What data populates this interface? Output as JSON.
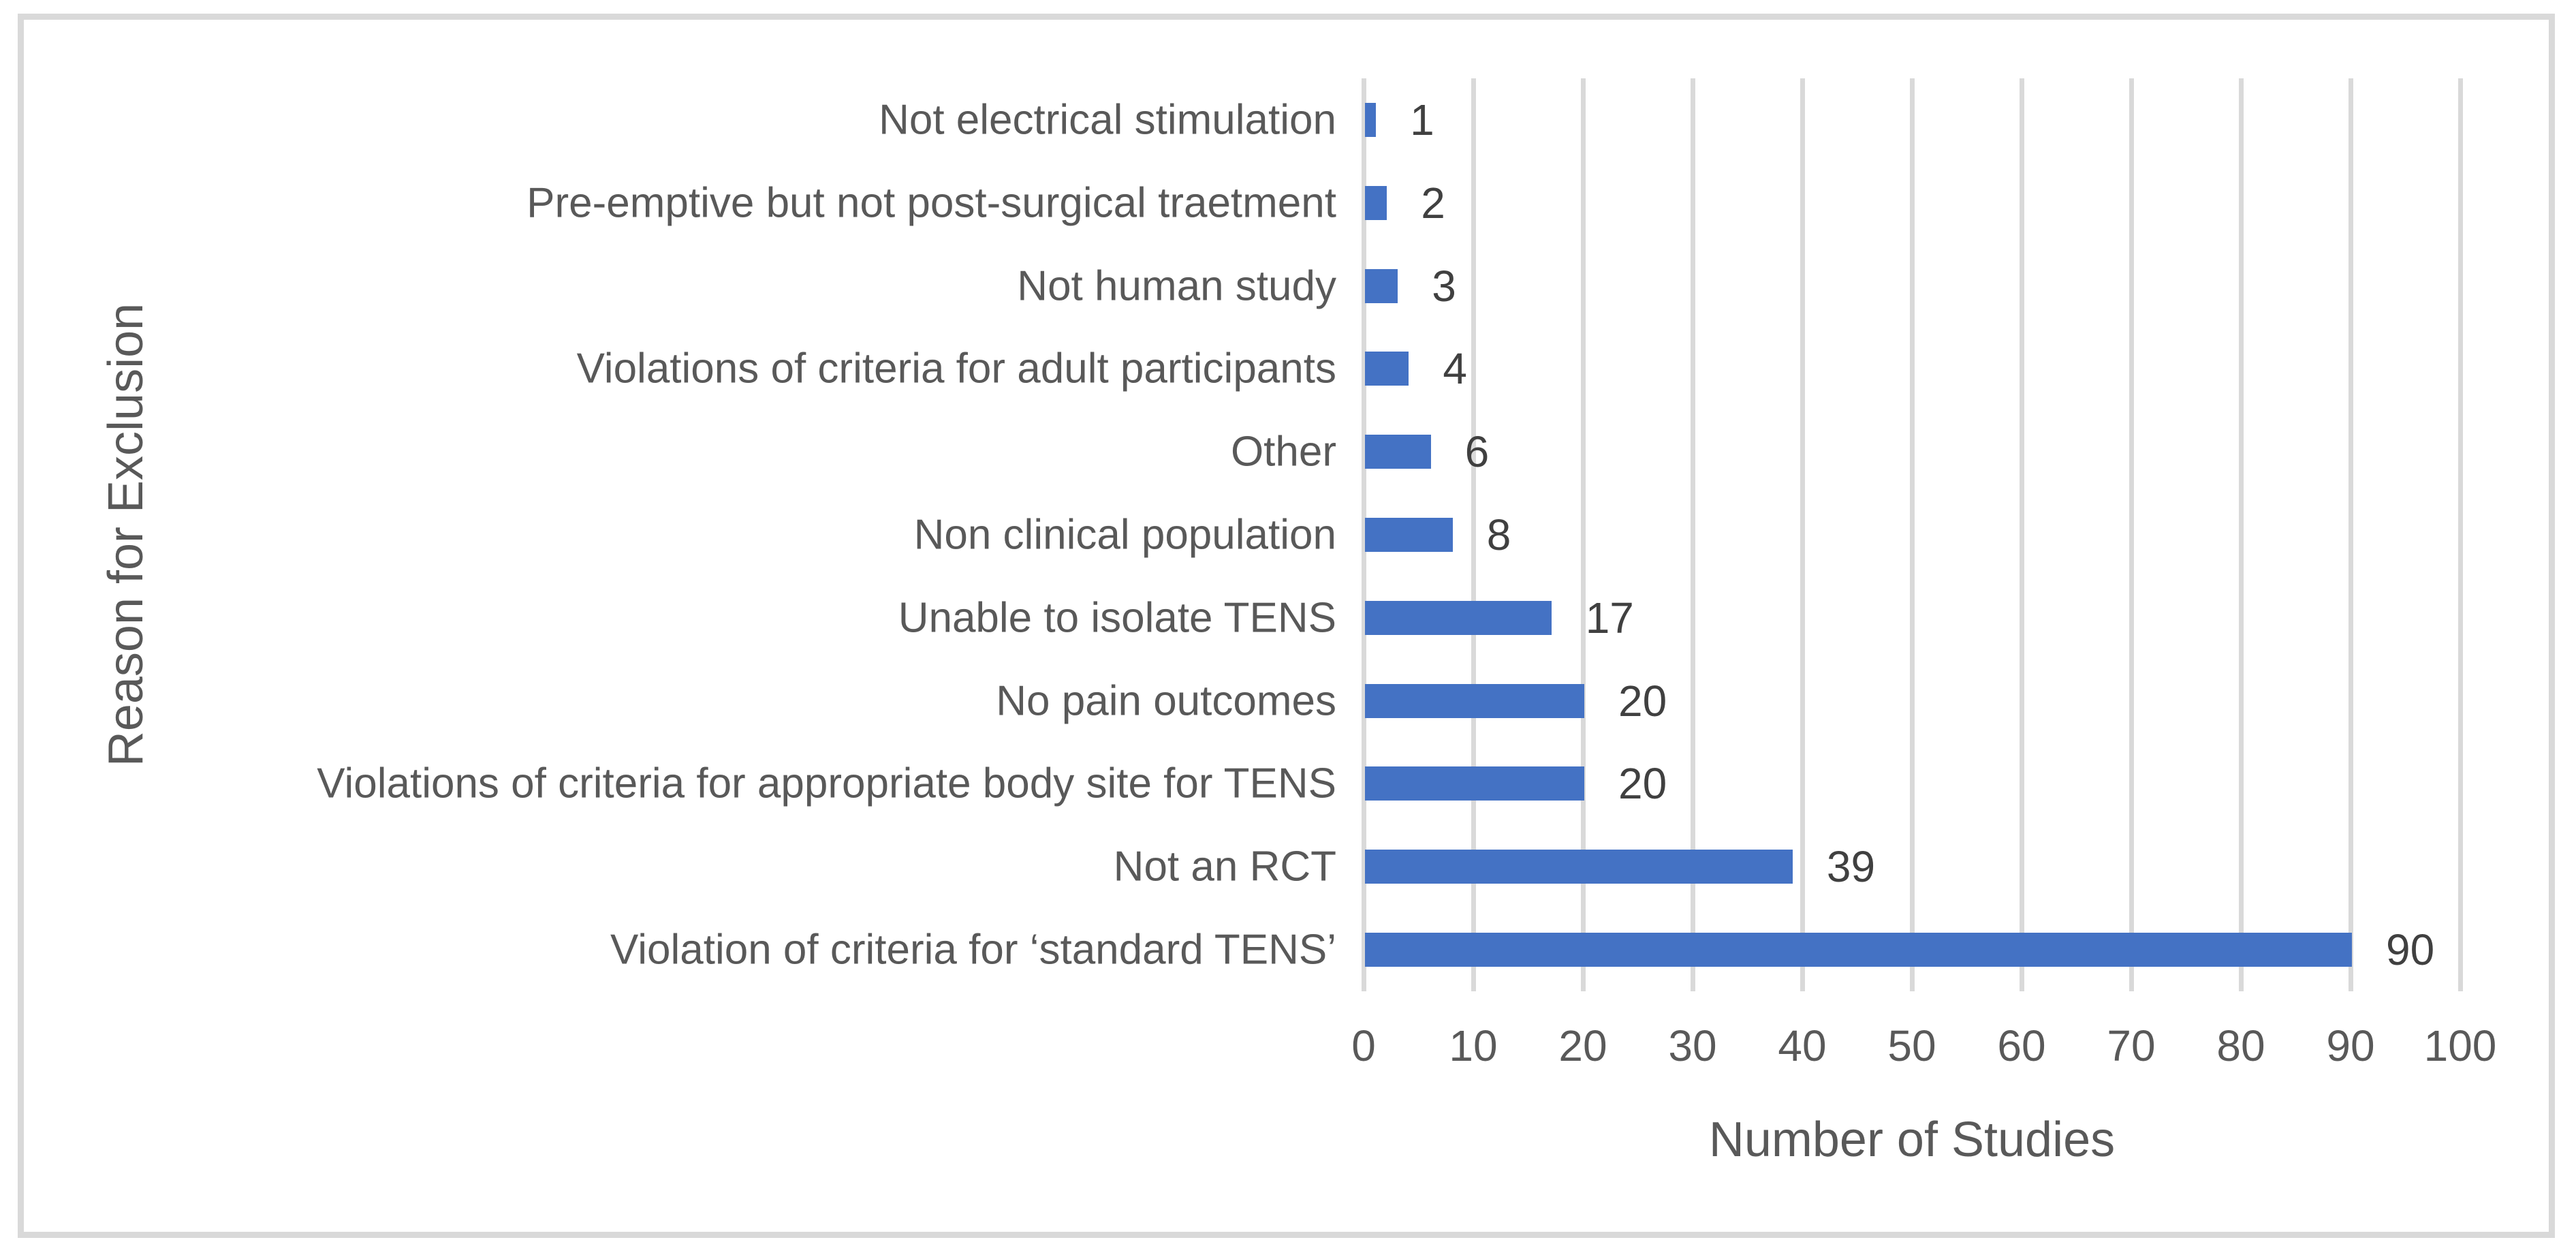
{
  "chart_data": {
    "type": "bar",
    "orientation": "horizontal",
    "categories": [
      "Not electrical stimulation",
      "Pre-emptive but not post-surgical traetment",
      "Not human study",
      "Violations of criteria for adult participants",
      "Other",
      "Non clinical population",
      "Unable to isolate TENS",
      "No pain outcomes",
      "Violations of criteria for appropriate body site for TENS",
      "Not an RCT",
      "Violation of criteria for ‘standard TENS’"
    ],
    "values": [
      1,
      2,
      3,
      4,
      6,
      8,
      17,
      20,
      20,
      39,
      90
    ],
    "value_labels": [
      "1",
      "2",
      "3",
      "4",
      "6",
      "8",
      "17",
      "20",
      "20",
      "39",
      "90"
    ],
    "xlabel": "Number of Studies",
    "ylabel": "Reason for Exclusion",
    "xlim": [
      0,
      100
    ],
    "xticks": [
      0,
      10,
      20,
      30,
      40,
      50,
      60,
      70,
      80,
      90,
      100
    ],
    "grid": "vertical-major",
    "legend": "none",
    "title": "",
    "colors": {
      "bar": "#4472C4",
      "gridline": "#D9D9D9",
      "frame_border": "#D9D9D9",
      "axis_text": "#595959",
      "value_text": "#404040",
      "background": "#ffffff"
    }
  }
}
